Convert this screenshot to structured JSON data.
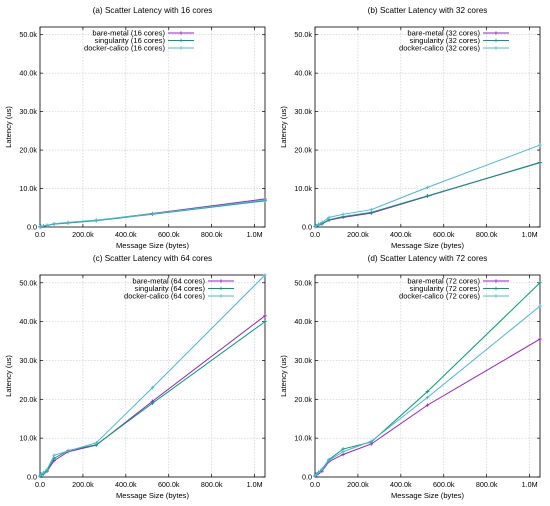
{
  "colors": {
    "bare-metal": "#9b1fc9",
    "singularity": "#009e73",
    "docker-calico": "#49b8d6"
  },
  "chart_data": [
    {
      "type": "line",
      "title": "(a) Scatter Latency with 16 cores",
      "xlabel": "Message Size (bytes)",
      "ylabel": "Latency (us)",
      "xlim": [
        0,
        1048576
      ],
      "ylim": [
        0,
        52000
      ],
      "xticks": [
        0,
        200000,
        400000,
        600000,
        800000,
        1000000
      ],
      "xtick_labels": [
        "0.0",
        "200.0k",
        "400.0k",
        "600.0k",
        "800.0k",
        "1.0M"
      ],
      "yticks": [
        0,
        10000,
        20000,
        30000,
        40000,
        50000
      ],
      "ytick_labels": [
        "0.0",
        "10.0k",
        "20.0k",
        "30.0k",
        "40.0k",
        "50.0k"
      ],
      "grid": true,
      "legend": "top-left",
      "x": [
        1,
        4096,
        16384,
        32768,
        65536,
        131072,
        262144,
        524288,
        1048576
      ],
      "series": [
        {
          "name": "bare-metal (16 cores)",
          "color_key": "bare-metal",
          "values": [
            50,
            120,
            250,
            400,
            800,
            1100,
            1700,
            3500,
            7300
          ]
        },
        {
          "name": "singularity (16 cores)",
          "color_key": "singularity",
          "values": [
            50,
            110,
            230,
            380,
            750,
            1050,
            1650,
            3300,
            6800
          ]
        },
        {
          "name": "docker-calico (16 cores)",
          "color_key": "docker-calico",
          "values": [
            60,
            150,
            300,
            450,
            850,
            1200,
            1800,
            3400,
            7000
          ]
        }
      ]
    },
    {
      "type": "line",
      "title": "(b) Scatter Latency with 32 cores",
      "xlabel": "Message Size (bytes)",
      "ylabel": "Latency (us)",
      "xlim": [
        0,
        1048576
      ],
      "ylim": [
        0,
        52000
      ],
      "xticks": [
        0,
        200000,
        400000,
        600000,
        800000,
        1000000
      ],
      "xtick_labels": [
        "0.0",
        "200.0k",
        "400.0k",
        "600.0k",
        "800.0k",
        "1.0M"
      ],
      "yticks": [
        0,
        10000,
        20000,
        30000,
        40000,
        50000
      ],
      "ytick_labels": [
        "0.0",
        "10.0k",
        "20.0k",
        "30.0k",
        "40.0k",
        "50.0k"
      ],
      "grid": true,
      "legend": "top-right",
      "x": [
        1,
        4096,
        16384,
        32768,
        65536,
        131072,
        262144,
        524288,
        1048576
      ],
      "series": [
        {
          "name": "bare-metal (32 cores)",
          "color_key": "bare-metal",
          "values": [
            100,
            300,
            500,
            800,
            1800,
            2500,
            3600,
            8000,
            16800
          ]
        },
        {
          "name": "singularity (32 cores)",
          "color_key": "singularity",
          "values": [
            100,
            300,
            500,
            900,
            1900,
            2700,
            3800,
            8100,
            16700
          ]
        },
        {
          "name": "docker-calico (32 cores)",
          "color_key": "docker-calico",
          "values": [
            150,
            400,
            700,
            1200,
            2500,
            3300,
            4500,
            10300,
            21300
          ]
        }
      ]
    },
    {
      "type": "line",
      "title": "(c) Scatter Latency with 64 cores",
      "xlabel": "Message Size (bytes)",
      "ylabel": "Latency (us)",
      "xlim": [
        0,
        1048576
      ],
      "ylim": [
        0,
        52000
      ],
      "xticks": [
        0,
        200000,
        400000,
        600000,
        800000,
        1000000
      ],
      "xtick_labels": [
        "0.0",
        "200.0k",
        "400.0k",
        "600.0k",
        "800.0k",
        "1.0M"
      ],
      "yticks": [
        0,
        10000,
        20000,
        30000,
        40000,
        50000
      ],
      "ytick_labels": [
        "0.0",
        "10.0k",
        "20.0k",
        "30.0k",
        "40.0k",
        "50.0k"
      ],
      "grid": true,
      "legend": "top-right",
      "x": [
        1,
        4096,
        16384,
        32768,
        65536,
        131072,
        262144,
        524288,
        1048576
      ],
      "series": [
        {
          "name": "bare-metal (64 cores)",
          "color_key": "bare-metal",
          "values": [
            200,
            600,
            900,
            1500,
            4200,
            6500,
            8200,
            19500,
            41500
          ]
        },
        {
          "name": "singularity (64 cores)",
          "color_key": "singularity",
          "values": [
            200,
            500,
            800,
            1600,
            4800,
            6800,
            8300,
            19000,
            40000
          ]
        },
        {
          "name": "docker-calico (64 cores)",
          "color_key": "docker-calico",
          "values": [
            300,
            800,
            1100,
            1900,
            5600,
            6700,
            8800,
            23000,
            52000
          ]
        }
      ]
    },
    {
      "type": "line",
      "title": "(d) Scatter Latency with 72 cores",
      "xlabel": "Message Size (bytes)",
      "ylabel": "Latency (us)",
      "xlim": [
        0,
        1048576
      ],
      "ylim": [
        0,
        52000
      ],
      "xticks": [
        0,
        200000,
        400000,
        600000,
        800000,
        1000000
      ],
      "xtick_labels": [
        "0.0",
        "200.0k",
        "400.0k",
        "600.0k",
        "800.0k",
        "1.0M"
      ],
      "yticks": [
        0,
        10000,
        20000,
        30000,
        40000,
        50000
      ],
      "ytick_labels": [
        "0.0",
        "10.0k",
        "20.0k",
        "30.0k",
        "40.0k",
        "50.0k"
      ],
      "grid": true,
      "legend": "top-right",
      "x": [
        1,
        4096,
        16384,
        32768,
        65536,
        131072,
        262144,
        524288,
        1048576
      ],
      "series": [
        {
          "name": "bare-metal (72 cores)",
          "color_key": "bare-metal",
          "values": [
            200,
            500,
            900,
            1500,
            4000,
            5800,
            8500,
            18500,
            35500
          ]
        },
        {
          "name": "singularity (72 cores)",
          "color_key": "singularity",
          "values": [
            300,
            700,
            1200,
            2000,
            4500,
            7200,
            9000,
            22000,
            50000
          ]
        },
        {
          "name": "docker-calico (72 cores)",
          "color_key": "docker-calico",
          "values": [
            300,
            600,
            1100,
            1900,
            4300,
            6500,
            9200,
            20500,
            44000
          ]
        }
      ]
    }
  ]
}
